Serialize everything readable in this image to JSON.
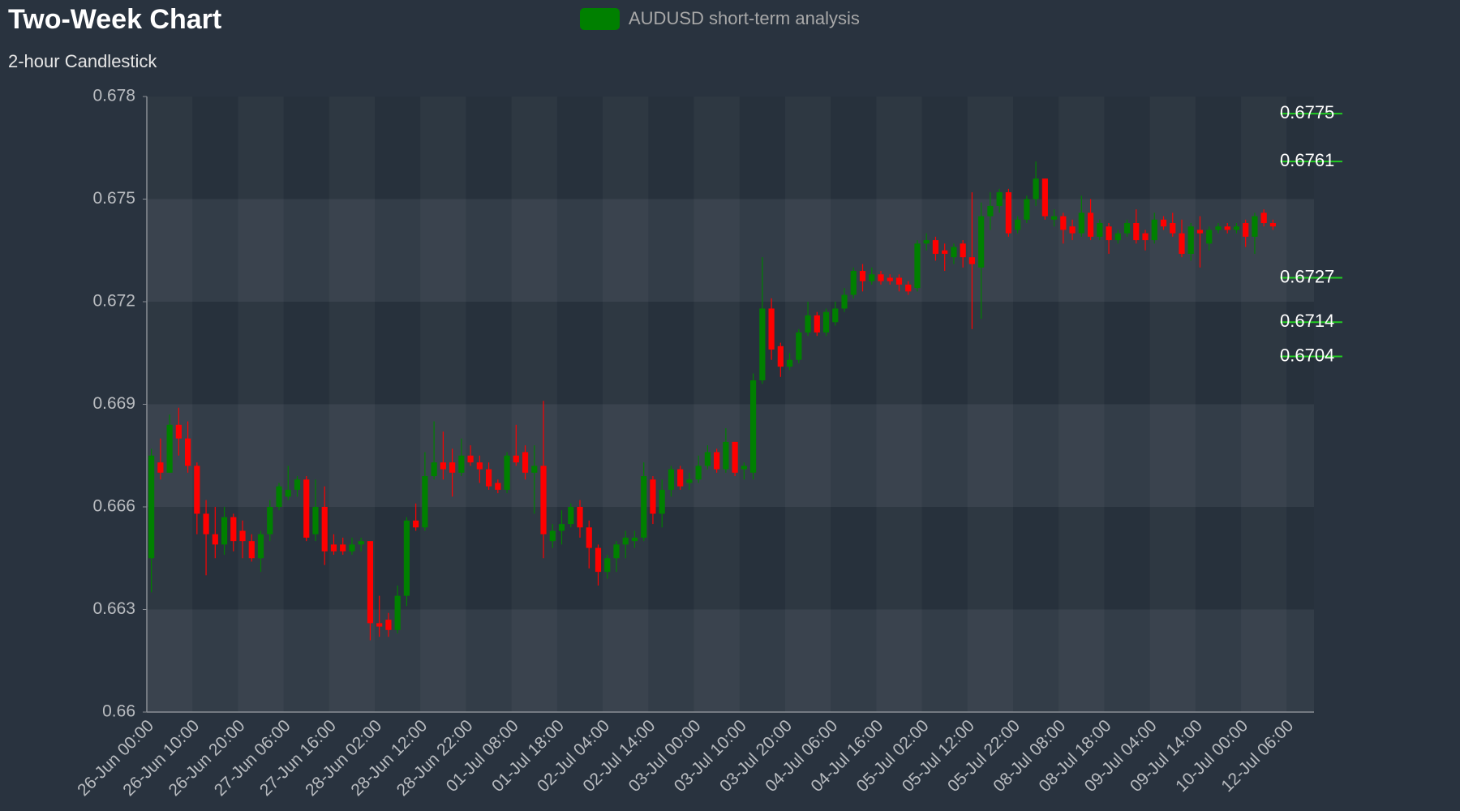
{
  "chart_data": {
    "type": "candlestick",
    "title": "Two-Week Chart",
    "subtitle": "2-hour Candlestick",
    "categories": [
      "26-Jun 00:00",
      null,
      null,
      null,
      null,
      "26-Jun 10:00",
      null,
      null,
      null,
      null,
      "26-Jun 20:00",
      null,
      null,
      null,
      null,
      "27-Jun 06:00",
      null,
      null,
      null,
      null,
      "27-Jun 16:00",
      null,
      null,
      null,
      null,
      "28-Jun 02:00",
      null,
      null,
      null,
      null,
      "28-Jun 12:00",
      null,
      null,
      null,
      null,
      "28-Jun 22:00",
      null,
      null,
      null,
      null,
      "01-Jul 08:00",
      null,
      null,
      null,
      null,
      "01-Jul 18:00",
      null,
      null,
      null,
      null,
      "02-Jul 04:00",
      null,
      null,
      null,
      null,
      "02-Jul 14:00",
      null,
      null,
      null,
      null,
      "03-Jul 00:00",
      null,
      null,
      null,
      null,
      "03-Jul 10:00",
      null,
      null,
      null,
      null,
      "03-Jul 20:00",
      null,
      null,
      null,
      null,
      "04-Jul 06:00",
      null,
      null,
      null,
      null,
      "04-Jul 16:00",
      null,
      null,
      null,
      null,
      "05-Jul 02:00",
      null,
      null,
      null,
      null,
      "05-Jul 12:00",
      null,
      null,
      null,
      null,
      "05-Jul 22:00",
      null,
      null,
      null,
      null,
      "08-Jul 08:00",
      null,
      null,
      null,
      null,
      "08-Jul 18:00",
      null,
      null,
      null,
      null,
      "09-Jul 04:00",
      null,
      null,
      null,
      null,
      "09-Jul 14:00",
      null,
      null,
      null,
      null,
      "10-Jul 00:00",
      null,
      null,
      null,
      null,
      "12-Jul 06:00",
      null,
      null
    ],
    "series": [
      {
        "name": "AUDUSD short-term analysis",
        "color": "#008000",
        "open": [
          0.6645,
          0.6673,
          0.667,
          0.6684,
          0.668,
          0.6672,
          0.6658,
          0.6652,
          0.6649,
          0.6657,
          0.6653,
          0.665,
          0.6645,
          0.6652,
          0.666,
          0.6663,
          0.6665,
          0.6668,
          0.6652,
          0.666,
          0.6649,
          0.6649,
          0.6647,
          0.6649,
          0.665,
          0.6626,
          0.6627,
          0.6624,
          0.6634,
          0.6656,
          0.6654,
          0.6669,
          0.6673,
          0.6673,
          0.667,
          0.6675,
          0.6673,
          0.6671,
          0.6667,
          0.6665,
          0.6675,
          0.6676,
          0.667,
          0.6672,
          0.665,
          0.6653,
          0.6655,
          0.666,
          0.6654,
          0.6648,
          0.6641,
          0.6645,
          0.6649,
          0.665,
          0.6651,
          0.6668,
          0.6658,
          0.6665,
          0.6671,
          0.6667,
          0.6668,
          0.6672,
          0.6676,
          0.6671,
          0.6679,
          0.6671,
          0.667,
          0.6697,
          0.6718,
          0.6707,
          0.6701,
          0.6703,
          0.6711,
          0.6716,
          0.6711,
          0.6714,
          0.6718,
          0.6722,
          0.6729,
          0.6726,
          0.6728,
          0.6727,
          0.6727,
          0.6725,
          0.6724,
          0.6737,
          0.6738,
          0.6735,
          0.6733,
          0.6737,
          0.6733,
          0.673,
          0.6745,
          0.6748,
          0.6752,
          0.6741,
          0.6744,
          0.675,
          0.6756,
          0.6744,
          0.6745,
          0.6742,
          0.674,
          0.6746,
          0.6739,
          0.6742,
          0.6738,
          0.674,
          0.6743,
          0.674,
          0.6738,
          0.6744,
          0.6743,
          0.674,
          0.6734,
          0.6741,
          0.6737,
          0.6741,
          0.6742,
          0.6741,
          0.6743,
          0.6739,
          0.6746,
          0.6743,
          null,
          null,
          null,
          null
        ],
        "high": [
          0.6677,
          0.668,
          0.6687,
          0.6689,
          0.6685,
          0.6673,
          0.6662,
          0.666,
          0.666,
          0.6658,
          0.6656,
          0.6652,
          0.6653,
          0.6662,
          0.6667,
          0.6672,
          0.6669,
          0.6669,
          0.6668,
          0.6666,
          0.6652,
          0.6651,
          0.6651,
          0.6651,
          0.665,
          0.6634,
          0.6629,
          0.6637,
          0.6657,
          0.6661,
          0.6676,
          0.6685,
          0.6682,
          0.6677,
          0.668,
          0.6678,
          0.6675,
          0.6673,
          0.6668,
          0.6676,
          0.6684,
          0.6678,
          0.6678,
          0.6691,
          0.6655,
          0.6659,
          0.6661,
          0.6662,
          0.6656,
          0.6649,
          0.6646,
          0.665,
          0.6653,
          0.6653,
          0.6673,
          0.6669,
          0.6668,
          0.6672,
          0.6672,
          0.667,
          0.6675,
          0.6678,
          0.6677,
          0.6683,
          0.6679,
          0.6673,
          0.6699,
          0.6733,
          0.6721,
          0.6708,
          0.6705,
          0.6712,
          0.672,
          0.6717,
          0.6718,
          0.672,
          0.6724,
          0.673,
          0.6731,
          0.673,
          0.6729,
          0.6728,
          0.6728,
          0.6726,
          0.6738,
          0.674,
          0.6739,
          0.6737,
          0.6737,
          0.6738,
          0.6752,
          0.6749,
          0.6752,
          0.6753,
          0.6753,
          0.6745,
          0.6751,
          0.6761,
          0.6756,
          0.6747,
          0.6746,
          0.6744,
          0.6751,
          0.675,
          0.6744,
          0.6743,
          0.6741,
          0.6744,
          0.6747,
          0.6741,
          0.6746,
          0.6745,
          0.6746,
          0.6744,
          0.6743,
          0.6745,
          0.6742,
          0.6743,
          0.6743,
          0.6743,
          0.6744,
          0.6746,
          0.6747,
          0.6744,
          null,
          null,
          null,
          null
        ],
        "low": [
          0.6635,
          0.6668,
          0.667,
          0.6675,
          0.667,
          0.6652,
          0.664,
          0.6645,
          0.6646,
          0.6647,
          0.6645,
          0.6644,
          0.6641,
          0.665,
          0.6659,
          0.6662,
          0.6663,
          0.665,
          0.665,
          0.6643,
          0.6646,
          0.6646,
          0.6646,
          0.6647,
          0.6621,
          0.6622,
          0.6622,
          0.6623,
          0.6631,
          0.6653,
          0.6653,
          0.6668,
          0.6668,
          0.6663,
          0.6669,
          0.6672,
          0.6667,
          0.6665,
          0.6664,
          0.6664,
          0.6672,
          0.6668,
          0.6658,
          0.6645,
          0.6648,
          0.6649,
          0.6654,
          0.6651,
          0.6642,
          0.6637,
          0.6639,
          0.6641,
          0.6645,
          0.6648,
          0.665,
          0.6655,
          0.6654,
          0.6663,
          0.6665,
          0.6665,
          0.6667,
          0.6671,
          0.667,
          0.667,
          0.6669,
          0.6668,
          0.6668,
          0.6696,
          0.6703,
          0.6698,
          0.67,
          0.6702,
          0.671,
          0.671,
          0.671,
          0.6713,
          0.6717,
          0.6721,
          0.6723,
          0.6725,
          0.6725,
          0.6725,
          0.6723,
          0.6722,
          0.6723,
          0.6735,
          0.6732,
          0.6729,
          0.6731,
          0.673,
          0.6712,
          0.6715,
          0.6741,
          0.6746,
          0.6739,
          0.674,
          0.6743,
          0.6748,
          0.6744,
          0.6742,
          0.6737,
          0.6738,
          0.6739,
          0.6738,
          0.6738,
          0.6734,
          0.6737,
          0.6739,
          0.6737,
          0.6735,
          0.6737,
          0.6741,
          0.6739,
          0.6733,
          0.6732,
          0.673,
          0.6735,
          0.674,
          0.674,
          0.674,
          0.6736,
          0.6734,
          0.6742,
          0.6741,
          null,
          null,
          null,
          null
        ],
        "close": [
          0.6675,
          0.667,
          0.6684,
          0.668,
          0.6672,
          0.6658,
          0.6652,
          0.6649,
          0.6657,
          0.665,
          0.665,
          0.6645,
          0.6652,
          0.666,
          0.6666,
          0.6665,
          0.6668,
          0.6651,
          0.666,
          0.6647,
          0.6647,
          0.6647,
          0.6649,
          0.665,
          0.6626,
          0.6625,
          0.6624,
          0.6634,
          0.6656,
          0.6654,
          0.6669,
          0.6673,
          0.6671,
          0.667,
          0.6675,
          0.6673,
          0.6671,
          0.6666,
          0.6665,
          0.6675,
          0.6673,
          0.667,
          0.6672,
          0.6652,
          0.6653,
          0.6655,
          0.666,
          0.6654,
          0.6648,
          0.6641,
          0.6645,
          0.6649,
          0.6651,
          0.6651,
          0.6669,
          0.6658,
          0.6665,
          0.6671,
          0.6666,
          0.6668,
          0.6672,
          0.6676,
          0.6671,
          0.6679,
          0.667,
          0.6672,
          0.6697,
          0.6718,
          0.6706,
          0.6701,
          0.6703,
          0.6711,
          0.6716,
          0.6711,
          0.6717,
          0.6718,
          0.6722,
          0.6729,
          0.6726,
          0.6728,
          0.6726,
          0.6726,
          0.6725,
          0.6723,
          0.6737,
          0.6738,
          0.6734,
          0.6734,
          0.6736,
          0.6733,
          0.6731,
          0.6745,
          0.6748,
          0.6752,
          0.674,
          0.6744,
          0.675,
          0.6756,
          0.6745,
          0.6745,
          0.6741,
          0.674,
          0.6746,
          0.6739,
          0.6743,
          0.6738,
          0.674,
          0.6743,
          0.6738,
          0.6738,
          0.6744,
          0.6742,
          0.674,
          0.6734,
          0.6742,
          0.674,
          0.6741,
          0.6742,
          0.6741,
          0.6742,
          0.6739,
          0.6745,
          0.6743,
          0.6742,
          null,
          null,
          null,
          null
        ]
      }
    ],
    "up_color": "#008000",
    "down_color": "#ff0000",
    "ylim": [
      0.66,
      0.678
    ],
    "yticks": [
      0.66,
      0.663,
      0.666,
      0.669,
      0.672,
      0.675,
      0.678
    ],
    "annotations": [
      0.6775,
      0.6761,
      0.6727,
      0.6714,
      0.6704
    ],
    "annotation_color": "#22cc22"
  }
}
